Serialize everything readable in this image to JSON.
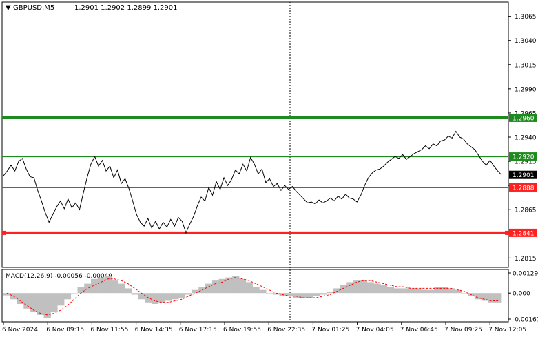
{
  "header": {
    "symbol": "GBPUSD,M5",
    "ohlc": "1.2901 1.2902 1.2899 1.2901"
  },
  "colors": {
    "background": "#ffffff",
    "axis": "#000000",
    "price_line": "#000000",
    "green_level": "#1f8a1f",
    "red_level": "#ff2020",
    "bid_line": "#e08060",
    "histogram": "#c0c0c0",
    "signal": "#ff0000",
    "current_badge": "#000000"
  },
  "price_axis": {
    "ticks": [
      "1.3065",
      "1.3040",
      "1.3015",
      "1.2990",
      "1.2965",
      "1.2940",
      "1.2915",
      "1.2890",
      "1.2865",
      "1.2840",
      "1.2815"
    ],
    "min": 1.2806,
    "max": 1.3079
  },
  "levels": [
    {
      "value": 1.296,
      "label": "1.2960",
      "kind": "green",
      "thick": true
    },
    {
      "value": 1.292,
      "label": "1.2920",
      "kind": "green",
      "thick": false
    },
    {
      "value": 1.2888,
      "label": "1.2888",
      "kind": "red",
      "thick": false
    },
    {
      "value": 1.2841,
      "label": "1.2841",
      "kind": "red",
      "thick": true
    }
  ],
  "bid": {
    "value": 1.2904
  },
  "current_price": {
    "value": 1.2901,
    "label": "1.2901"
  },
  "macd": {
    "title": "MACD(12,26,9) -0.00056 -0.00049",
    "ticks": [
      "0.00129",
      "0.000",
      "-0.00167"
    ],
    "min": -0.00167,
    "max": 0.00129
  },
  "time_axis": {
    "labels": [
      "6 Nov 2024",
      "6 Nov 09:15",
      "6 Nov 11:55",
      "6 Nov 14:35",
      "6 Nov 17:15",
      "6 Nov 19:55",
      "6 Nov 22:35",
      "7 Nov 01:25",
      "7 Nov 04:05",
      "7 Nov 06:45",
      "7 Nov 09:25",
      "7 Nov 12:05"
    ]
  },
  "chart_data": {
    "type": "line",
    "title": "GBPUSD,M5",
    "xlabel": "",
    "ylabel": "",
    "ylim": [
      1.2806,
      1.3079
    ],
    "series": [
      {
        "name": "GBPUSD",
        "values": [
          1.29,
          1.2905,
          1.2911,
          1.2905,
          1.2915,
          1.2918,
          1.2907,
          1.2899,
          1.2898,
          1.2885,
          1.2874,
          1.2862,
          1.2852,
          1.286,
          1.2868,
          1.2874,
          1.2866,
          1.2876,
          1.2867,
          1.2872,
          1.2865,
          1.2882,
          1.2898,
          1.2912,
          1.292,
          1.291,
          1.2916,
          1.2905,
          1.291,
          1.2898,
          1.2906,
          1.2892,
          1.2897,
          1.2887,
          1.2874,
          1.286,
          1.2852,
          1.2848,
          1.2856,
          1.2846,
          1.2853,
          1.2845,
          1.2852,
          1.2847,
          1.2855,
          1.2848,
          1.2857,
          1.2853,
          1.2841,
          1.285,
          1.2858,
          1.2869,
          1.2878,
          1.2874,
          1.2888,
          1.288,
          1.2894,
          1.2886,
          1.2898,
          1.289,
          1.2896,
          1.2906,
          1.2902,
          1.2912,
          1.2905,
          1.2919,
          1.2912,
          1.2902,
          1.2907,
          1.2893,
          1.2897,
          1.2889,
          1.2892,
          1.2885,
          1.289,
          1.2886,
          1.2889,
          1.2884,
          1.288,
          1.2876,
          1.2872,
          1.2873,
          1.2871,
          1.2875,
          1.2872,
          1.2874,
          1.2877,
          1.2874,
          1.2879,
          1.2876,
          1.2881,
          1.2877,
          1.2876,
          1.2873,
          1.288,
          1.289,
          1.2898,
          1.2903,
          1.2906,
          1.2907,
          1.291,
          1.2914,
          1.2917,
          1.292,
          1.2918,
          1.2922,
          1.2917,
          1.292,
          1.2923,
          1.2925,
          1.2927,
          1.2931,
          1.2928,
          1.2933,
          1.2931,
          1.2936,
          1.2937,
          1.2941,
          1.2939,
          1.2946,
          1.294,
          1.2938,
          1.2933,
          1.293,
          1.2927,
          1.2921,
          1.2915,
          1.2911,
          1.2916,
          1.291,
          1.2905,
          1.2901
        ]
      }
    ],
    "macd_histogram": [
      -0.00015,
      -0.0004,
      -0.0007,
      -0.001,
      -0.0012,
      -0.0014,
      -0.0016,
      -0.0012,
      -0.0008,
      -0.0004,
      0.0,
      0.0004,
      0.0006,
      0.0009,
      0.001,
      0.0011,
      0.0008,
      0.0006,
      0.0003,
      -0.0001,
      -0.0004,
      -0.0006,
      -0.0007,
      -0.0006,
      -0.0005,
      -0.0004,
      -0.0003,
      -0.0001,
      0.0002,
      0.0004,
      0.0006,
      0.0008,
      0.0009,
      0.001,
      0.0011,
      0.0009,
      0.0007,
      0.0004,
      0.0002,
      0.0,
      -0.0001,
      -0.0002,
      -0.0002,
      -0.0003,
      -0.0003,
      -0.0003,
      -0.0002,
      -0.0001,
      0.0001,
      0.0003,
      0.0005,
      0.0007,
      0.0008,
      0.0008,
      0.0007,
      0.0006,
      0.0005,
      0.0004,
      0.0003,
      0.0003,
      0.0003,
      0.0003,
      0.0002,
      0.0002,
      0.0004,
      0.0004,
      0.0003,
      0.0002,
      0.0,
      -0.0002,
      -0.0004,
      -0.0005,
      -0.0006,
      -0.0006
    ],
    "macd_signal": [
      0.0,
      -0.0002,
      -0.0005,
      -0.0008,
      -0.0011,
      -0.0013,
      -0.0014,
      -0.0013,
      -0.0011,
      -0.0008,
      -0.0004,
      0.0,
      0.0003,
      0.0005,
      0.0007,
      0.0009,
      0.0009,
      0.0008,
      0.0006,
      0.0003,
      0.0,
      -0.0003,
      -0.0005,
      -0.0006,
      -0.0006,
      -0.0005,
      -0.0004,
      -0.0002,
      0.0,
      0.0002,
      0.0004,
      0.0006,
      0.0007,
      0.0009,
      0.001,
      0.0009,
      0.0008,
      0.0006,
      0.0004,
      0.0002,
      0.0,
      -0.0001,
      -0.0002,
      -0.0002,
      -0.0003,
      -0.0003,
      -0.0003,
      -0.0002,
      -0.0001,
      0.0001,
      0.0003,
      0.0005,
      0.0007,
      0.0008,
      0.0008,
      0.0007,
      0.0006,
      0.0005,
      0.0004,
      0.0004,
      0.0003,
      0.0003,
      0.0003,
      0.0003,
      0.0003,
      0.0003,
      0.0003,
      0.0002,
      0.0001,
      -0.0001,
      -0.0003,
      -0.0004,
      -0.0005,
      -0.0005
    ]
  }
}
